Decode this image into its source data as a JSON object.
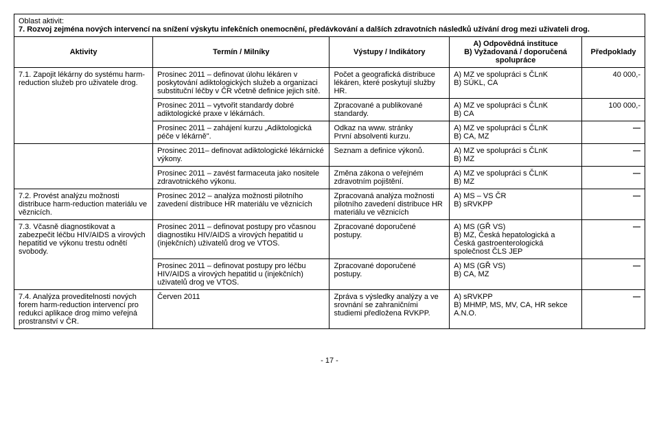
{
  "area_label": "Oblast aktivit:",
  "area_title": "7. Rozvoj zejména nových intervencí na snížení výskytu infekčních onemocnění, předávkování a dalších zdravotních následků užívání drog mezi uživateli drog.",
  "headers": {
    "aktivity": "Aktivity",
    "termin": "Termín / Milníky",
    "vystupy": "Výstupy / Indikátory",
    "odpoved_a": "A) Odpovědná instituce",
    "odpoved_b": "B) Vyžadovaná / doporučená spolupráce",
    "predpoklady": "Předpoklady"
  },
  "rows": [
    {
      "activity": "7.1. Zapojit lékárny do systému harm-reduction služeb pro uživatele drog.",
      "sub": [
        {
          "termin": "Prosinec 2011 – definovat úlohu lékáren v poskytování adiktologických služeb a organizaci substituční léčby v ČR včetně definice jejich sítě.",
          "vystupy": "Počet a geografická distribuce lékáren, které poskytují služby HR.",
          "odpoved": "A) MZ ve spolupráci s ČLnK\nB) SÚKL, CA",
          "predpoklady": "40 000,-"
        },
        {
          "termin": "Prosinec 2011 – vytvořit standardy dobré adiktologické praxe v lékárnách.",
          "vystupy": "Zpracované a publikované standardy.",
          "odpoved": "A) MZ ve spolupráci s ČLnK\nB) CA",
          "predpoklady": "100 000,-"
        },
        {
          "termin": "Prosinec 2011 – zahájení kurzu „Adiktologická péče v lékárně\".",
          "vystupy": "Odkaz na www. stránky\nPrvní absolventi kurzu.",
          "odpoved": "A) MZ ve spolupráci s ČLnK\nB) CA, MZ",
          "predpoklady": "—"
        }
      ]
    },
    {
      "activity": "",
      "sub": [
        {
          "termin": "Prosinec 2011– definovat adiktologické lékárnické výkony.",
          "vystupy": "Seznam a definice výkonů.",
          "odpoved": "A) MZ ve spolupráci s ČLnK\nB) MZ",
          "predpoklady": "—"
        },
        {
          "termin": "Prosinec 2011 – zavést farmaceuta jako nositele zdravotnického výkonu.",
          "vystupy": "Změna zákona o veřejném zdravotním pojištění.",
          "odpoved": "A) MZ ve spolupráci s ČLnK\nB) MZ",
          "predpoklady": "—"
        }
      ]
    },
    {
      "activity": "7.2. Provést analýzu možnosti distribuce harm-reduction materiálu ve věznicích.",
      "sub": [
        {
          "termin": "Prosinec 2012 – analýza možnosti pilotního zavedení distribuce HR materiálu ve věznicích",
          "vystupy": "Zpracovaná analýza možnosti pilotního zavedení distribuce HR materiálu ve věznicích",
          "odpoved": "A) MS – VS ČR\nB) sRVKPP",
          "predpoklady": "—"
        }
      ]
    },
    {
      "activity": "7.3. Včasně diagnostikovat a zabezpečit léčbu HIV/AIDS a virových hepatitid ve výkonu trestu odnětí svobody.",
      "sub": [
        {
          "termin": "Prosinec 2011 – definovat postupy pro včasnou diagnostiku HIV/AIDS a virových hepatitid u (injekčních) uživatelů drog ve VTOS.",
          "vystupy": "Zpracované doporučené postupy.",
          "odpoved": "A) MS (GŘ VS)\nB) MZ, Česká hepatologická a Česká gastroenterologická společnost ČLS JEP",
          "predpoklady": "—"
        },
        {
          "termin": "Prosinec 2011 – definovat postupy pro léčbu HIV/AIDS a virových hepatitid u (injekčních) uživatelů drog ve VTOS.",
          "vystupy": "Zpracované doporučené postupy.",
          "odpoved": "A) MS (GŘ VS)\nB) CA, MZ",
          "predpoklady": "—"
        }
      ]
    },
    {
      "activity": "7.4. Analýza proveditelnosti nových forem harm-reduction intervencí pro redukci aplikace drog mimo veřejná prostranství v ČR.",
      "sub": [
        {
          "termin": "Červen 2011",
          "vystupy": "Zpráva s výsledky analýzy a ve srovnání se zahraničními studiemi předložena RVKPP.",
          "odpoved": "A) sRVKPP\nB) MHMP, MS, MV, CA, HR sekce A.N.O.",
          "predpoklady": "—"
        }
      ]
    }
  ],
  "page_number": "- 17 -"
}
